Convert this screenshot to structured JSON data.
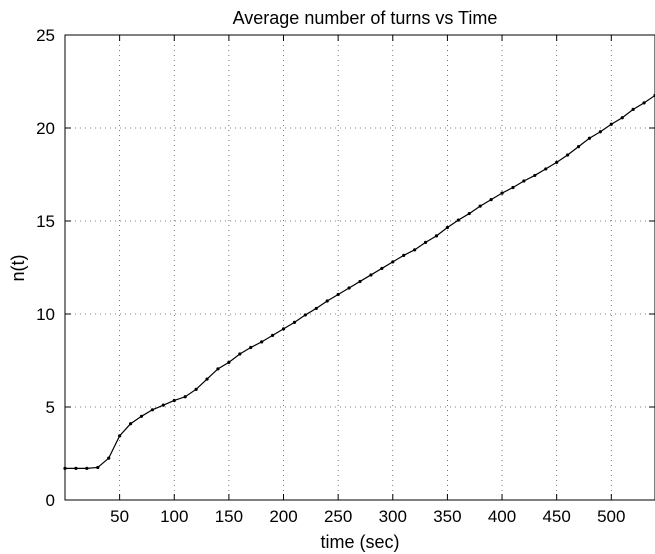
{
  "chart_data": {
    "type": "line",
    "title": "Average number of turns vs Time",
    "xlabel": "time (sec)",
    "ylabel": "n(t)",
    "xlim": [
      0,
      540
    ],
    "ylim": [
      0,
      25
    ],
    "grid": true,
    "xticks": [
      50,
      100,
      150,
      200,
      250,
      300,
      350,
      400,
      450,
      500
    ],
    "yticks": [
      0,
      5,
      10,
      15,
      20,
      25
    ],
    "series": [
      {
        "color": "#000000",
        "marker": "dot",
        "x": [
          0,
          10,
          20,
          30,
          40,
          50,
          60,
          70,
          80,
          90,
          100,
          110,
          120,
          130,
          140,
          150,
          160,
          170,
          180,
          190,
          200,
          210,
          220,
          230,
          240,
          250,
          260,
          270,
          280,
          290,
          300,
          310,
          320,
          330,
          340,
          350,
          360,
          370,
          380,
          390,
          400,
          410,
          420,
          430,
          440,
          450,
          460,
          470,
          480,
          490,
          500,
          510,
          520,
          530,
          540
        ],
        "y": [
          1.7,
          1.7,
          1.7,
          1.75,
          2.25,
          3.45,
          4.1,
          4.5,
          4.85,
          5.1,
          5.35,
          5.55,
          5.95,
          6.5,
          7.05,
          7.4,
          7.85,
          8.2,
          8.5,
          8.85,
          9.2,
          9.55,
          9.95,
          10.3,
          10.7,
          11.05,
          11.4,
          11.75,
          12.1,
          12.45,
          12.8,
          13.15,
          13.45,
          13.85,
          14.2,
          14.65,
          15.05,
          15.4,
          15.8,
          16.15,
          16.5,
          16.8,
          17.15,
          17.45,
          17.8,
          18.15,
          18.55,
          19.0,
          19.45,
          19.8,
          20.2,
          20.55,
          21.0,
          21.35,
          21.75
        ]
      }
    ]
  }
}
